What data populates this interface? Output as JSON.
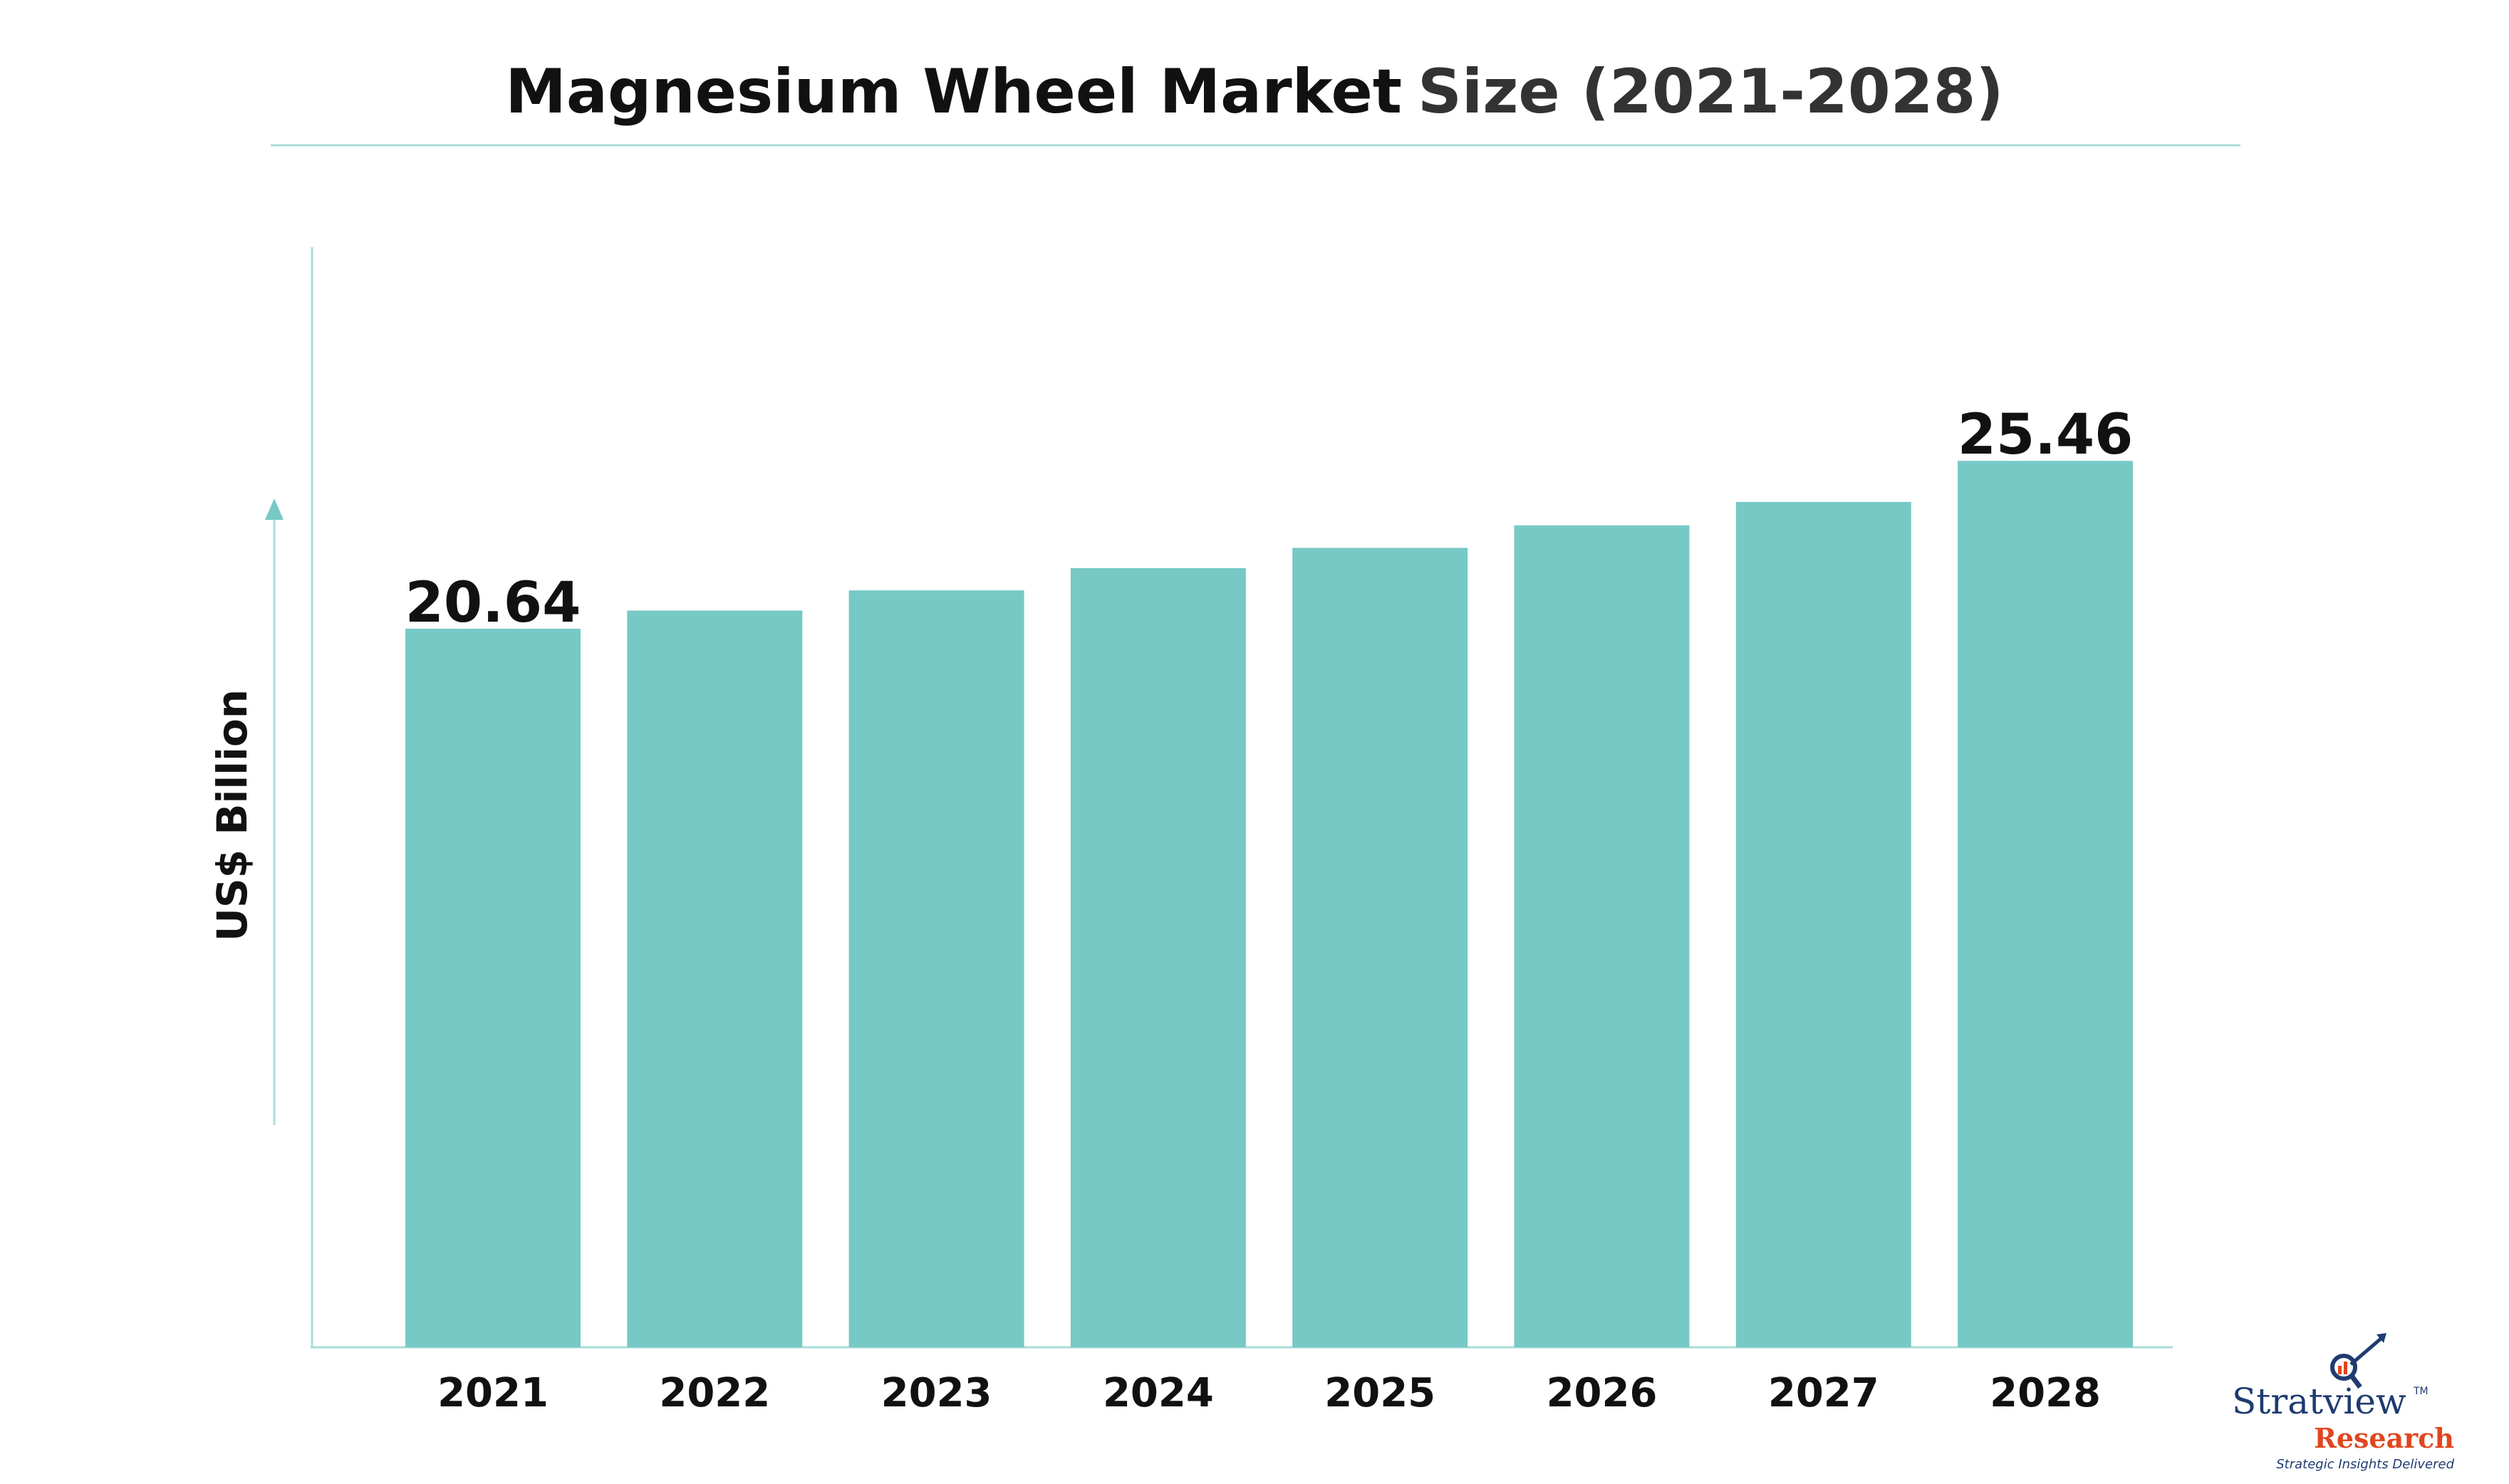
{
  "title": {
    "main": "Magnesium Wheel Market",
    "accent": "Size (2021-2028)"
  },
  "colors": {
    "bar": "#77c9c6",
    "axis": "#a9dcda",
    "title_rule": "#a9dcda",
    "logo_navy": "#1f3b70",
    "logo_orange": "#e0461f"
  },
  "logo": {
    "name": "Stratview",
    "trademark": "TM",
    "sub": "Research",
    "tagline": "Strategic Insights Delivered"
  },
  "chart_data": {
    "type": "bar",
    "title": "Magnesium Wheel Market Size (2021-2028)",
    "ylabel": "US$ Billion",
    "xlabel": "",
    "categories": [
      "2021",
      "2022",
      "2023",
      "2024",
      "2025",
      "2026",
      "2027",
      "2028"
    ],
    "values": [
      20.64,
      21.16,
      21.74,
      22.38,
      22.96,
      23.61,
      24.28,
      25.46
    ],
    "data_labels": {
      "2021": "20.64",
      "2028": "25.46"
    },
    "ylim": [
      0,
      31.6
    ],
    "grid": false,
    "legend": "none"
  }
}
